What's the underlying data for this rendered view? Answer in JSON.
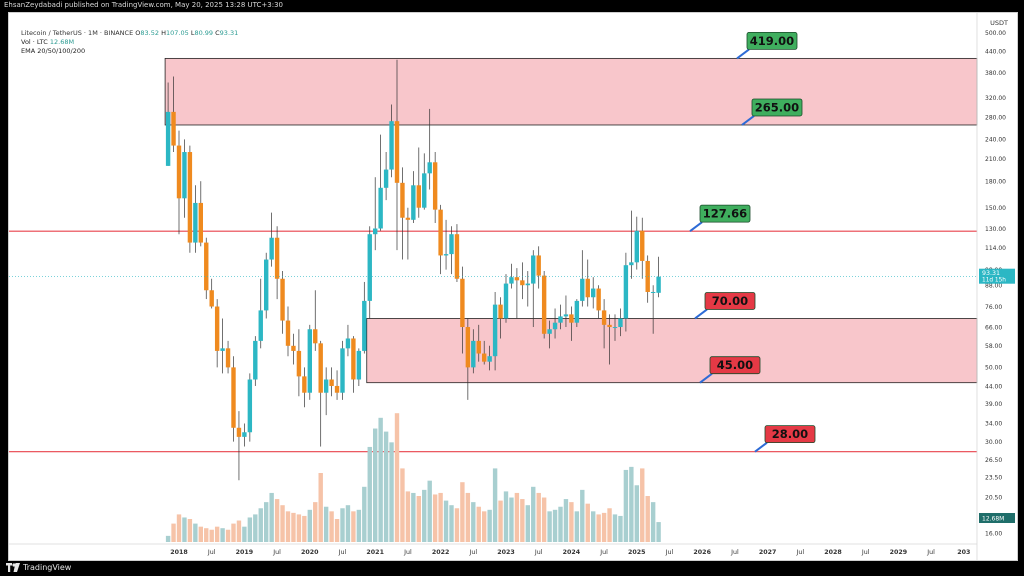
{
  "header": {
    "publisher_line": "EhsanZeydabadi published on TradingView.com, May 20, 2025 13:28 UTC+3:30",
    "symbol_line": "Litecoin / TetherUS · 1M · BINANCE",
    "ohlc": {
      "o_label": "O",
      "o": "83.52",
      "h_label": "H",
      "h": "107.05",
      "l_label": "L",
      "l": "80.99",
      "c_label": "C",
      "c": "93.31"
    },
    "volume_line": "Vol · LTC",
    "volume_value": "12.68M",
    "ema_line": "EMA 20/50/100/200"
  },
  "footer": {
    "brand": "TradingView",
    "logo_icon": "tradingview-logo-icon"
  },
  "colors": {
    "up": "#2cb7c4",
    "down": "#ef8a1f",
    "zone_fill": "#f8c6cb",
    "line_red": "#e8424b",
    "label_green": "#3fae5e",
    "label_red": "#e53945"
  },
  "chart_data": {
    "type": "candlestick",
    "timeframe": "1M",
    "y_scale": "log",
    "ylim": [
      16,
      520
    ],
    "y_axis_unit": "USDT",
    "y_ticks": [
      "16.00",
      "18.00",
      "20.50",
      "23.50",
      "26.50",
      "30.00",
      "34.00",
      "39.00",
      "44.00",
      "50.00",
      "58.00",
      "66.00",
      "76.00",
      "88.00",
      "98.00",
      "114.00",
      "130.00",
      "150.00",
      "180.00",
      "210.00",
      "240.00",
      "280.00",
      "320.00",
      "380.00",
      "440.00",
      "500.00"
    ],
    "x_ticks": [
      {
        "label": "2018",
        "date": "2018-01"
      },
      {
        "label": "Jul",
        "date": "2018-07"
      },
      {
        "label": "2019",
        "date": "2019-01"
      },
      {
        "label": "Jul",
        "date": "2019-07"
      },
      {
        "label": "2020",
        "date": "2020-01"
      },
      {
        "label": "Jul",
        "date": "2020-07"
      },
      {
        "label": "2021",
        "date": "2021-01"
      },
      {
        "label": "Jul",
        "date": "2021-07"
      },
      {
        "label": "2022",
        "date": "2022-01"
      },
      {
        "label": "Jul",
        "date": "2022-07"
      },
      {
        "label": "2023",
        "date": "2023-01"
      },
      {
        "label": "Jul",
        "date": "2023-07"
      },
      {
        "label": "2024",
        "date": "2024-01"
      },
      {
        "label": "Jul",
        "date": "2024-07"
      },
      {
        "label": "2025",
        "date": "2025-01"
      },
      {
        "label": "Jul",
        "date": "2025-07"
      },
      {
        "label": "2026",
        "date": "2026-01"
      },
      {
        "label": "Jul",
        "date": "2026-07"
      },
      {
        "label": "2027",
        "date": "2027-01"
      },
      {
        "label": "Jul",
        "date": "2027-07"
      },
      {
        "label": "2028",
        "date": "2028-01"
      },
      {
        "label": "Jul",
        "date": "2028-07"
      },
      {
        "label": "2029",
        "date": "2029-01"
      },
      {
        "label": "Jul",
        "date": "2029-07"
      },
      {
        "label": "203",
        "date": "2030-01"
      }
    ],
    "current_price": "93.31",
    "countdown": "11d 15h",
    "volume_last_label": "12.68M",
    "zones": [
      {
        "top": 419,
        "bottom": 265
      },
      {
        "top": 70,
        "bottom": 45
      }
    ],
    "lines": [
      127.66,
      28.0
    ],
    "labels": [
      {
        "text": "419.00",
        "value": 419,
        "color": "green"
      },
      {
        "text": "265.00",
        "value": 265,
        "color": "green"
      },
      {
        "text": "127.66",
        "value": 127.66,
        "color": "green"
      },
      {
        "text": "70.00",
        "value": 70,
        "color": "red"
      },
      {
        "text": "45.00",
        "value": 45,
        "color": "red"
      },
      {
        "text": "28.00",
        "value": 28,
        "color": "red"
      }
    ],
    "candles": [
      {
        "date": "2017-11",
        "o": 200,
        "h": 355,
        "l": 200,
        "c": 290,
        "v": 0.4
      },
      {
        "date": "2017-12",
        "o": 290,
        "h": 370,
        "l": 220,
        "c": 230,
        "v": 1.2
      },
      {
        "date": "2018-01",
        "o": 230,
        "h": 255,
        "l": 125,
        "c": 160,
        "v": 1.8
      },
      {
        "date": "2018-02",
        "o": 160,
        "h": 240,
        "l": 140,
        "c": 220,
        "v": 1.6
      },
      {
        "date": "2018-03",
        "o": 220,
        "h": 230,
        "l": 110,
        "c": 118,
        "v": 1.5
      },
      {
        "date": "2018-04",
        "o": 118,
        "h": 175,
        "l": 110,
        "c": 155,
        "v": 1.2
      },
      {
        "date": "2018-05",
        "o": 155,
        "h": 180,
        "l": 115,
        "c": 118,
        "v": 1.0
      },
      {
        "date": "2018-06",
        "o": 118,
        "h": 122,
        "l": 80,
        "c": 85,
        "v": 0.9
      },
      {
        "date": "2018-07",
        "o": 85,
        "h": 92,
        "l": 75,
        "c": 76,
        "v": 0.8
      },
      {
        "date": "2018-08",
        "o": 76,
        "h": 80,
        "l": 50,
        "c": 56,
        "v": 1.0
      },
      {
        "date": "2018-09",
        "o": 56,
        "h": 70,
        "l": 48,
        "c": 57,
        "v": 0.9
      },
      {
        "date": "2018-10",
        "o": 57,
        "h": 60,
        "l": 48,
        "c": 50,
        "v": 0.8
      },
      {
        "date": "2018-11",
        "o": 50,
        "h": 54,
        "l": 30,
        "c": 33,
        "v": 1.2
      },
      {
        "date": "2018-12",
        "o": 33,
        "h": 37,
        "l": 23,
        "c": 31,
        "v": 1.4
      },
      {
        "date": "2019-01",
        "o": 31,
        "h": 34,
        "l": 29,
        "c": 32,
        "v": 1.0
      },
      {
        "date": "2019-02",
        "o": 32,
        "h": 48,
        "l": 30,
        "c": 46,
        "v": 1.6
      },
      {
        "date": "2019-03",
        "o": 46,
        "h": 62,
        "l": 44,
        "c": 60,
        "v": 1.8
      },
      {
        "date": "2019-04",
        "o": 60,
        "h": 92,
        "l": 57,
        "c": 74,
        "v": 2.2
      },
      {
        "date": "2019-05",
        "o": 74,
        "h": 110,
        "l": 70,
        "c": 105,
        "v": 2.6
      },
      {
        "date": "2019-06",
        "o": 105,
        "h": 145,
        "l": 100,
        "c": 122,
        "v": 3.2
      },
      {
        "date": "2019-07",
        "o": 122,
        "h": 132,
        "l": 80,
        "c": 92,
        "v": 2.8
      },
      {
        "date": "2019-08",
        "o": 92,
        "h": 97,
        "l": 63,
        "c": 69,
        "v": 2.4
      },
      {
        "date": "2019-09",
        "o": 69,
        "h": 76,
        "l": 54,
        "c": 58,
        "v": 2.0
      },
      {
        "date": "2019-10",
        "o": 58,
        "h": 63,
        "l": 51,
        "c": 56,
        "v": 1.9
      },
      {
        "date": "2019-11",
        "o": 56,
        "h": 65,
        "l": 41,
        "c": 47,
        "v": 1.8
      },
      {
        "date": "2019-12",
        "o": 47,
        "h": 50,
        "l": 38,
        "c": 42,
        "v": 1.7
      },
      {
        "date": "2020-01",
        "o": 42,
        "h": 67,
        "l": 40,
        "c": 65,
        "v": 2.1
      },
      {
        "date": "2020-02",
        "o": 65,
        "h": 85,
        "l": 56,
        "c": 59,
        "v": 2.6
      },
      {
        "date": "2020-03",
        "o": 59,
        "h": 60,
        "l": 29,
        "c": 42,
        "v": 4.5
      },
      {
        "date": "2020-04",
        "o": 42,
        "h": 50,
        "l": 36,
        "c": 46,
        "v": 2.3
      },
      {
        "date": "2020-05",
        "o": 46,
        "h": 50,
        "l": 41,
        "c": 44,
        "v": 2.0
      },
      {
        "date": "2020-06",
        "o": 44,
        "h": 49,
        "l": 40,
        "c": 42,
        "v": 1.5
      },
      {
        "date": "2020-07",
        "o": 42,
        "h": 60,
        "l": 40,
        "c": 57,
        "v": 2.2
      },
      {
        "date": "2020-08",
        "o": 57,
        "h": 67,
        "l": 54,
        "c": 61,
        "v": 2.4
      },
      {
        "date": "2020-09",
        "o": 61,
        "h": 62,
        "l": 42,
        "c": 46,
        "v": 2.0
      },
      {
        "date": "2020-10",
        "o": 46,
        "h": 57,
        "l": 44,
        "c": 56,
        "v": 2.1
      },
      {
        "date": "2020-11",
        "o": 56,
        "h": 90,
        "l": 55,
        "c": 79,
        "v": 3.6
      },
      {
        "date": "2020-12",
        "o": 79,
        "h": 132,
        "l": 70,
        "c": 125,
        "v": 6.2
      },
      {
        "date": "2021-01",
        "o": 125,
        "h": 185,
        "l": 112,
        "c": 130,
        "v": 7.4
      },
      {
        "date": "2021-02",
        "o": 130,
        "h": 248,
        "l": 128,
        "c": 172,
        "v": 8.1
      },
      {
        "date": "2021-03",
        "o": 172,
        "h": 220,
        "l": 158,
        "c": 195,
        "v": 7.2
      },
      {
        "date": "2021-04",
        "o": 195,
        "h": 305,
        "l": 185,
        "c": 272,
        "v": 6.5
      },
      {
        "date": "2021-05",
        "o": 272,
        "h": 415,
        "l": 112,
        "c": 178,
        "v": 8.4
      },
      {
        "date": "2021-06",
        "o": 178,
        "h": 198,
        "l": 105,
        "c": 140,
        "v": 4.8
      },
      {
        "date": "2021-07",
        "o": 140,
        "h": 150,
        "l": 105,
        "c": 138,
        "v": 3.3
      },
      {
        "date": "2021-08",
        "o": 138,
        "h": 193,
        "l": 135,
        "c": 175,
        "v": 3.2
      },
      {
        "date": "2021-09",
        "o": 175,
        "h": 227,
        "l": 140,
        "c": 150,
        "v": 3.0
      },
      {
        "date": "2021-10",
        "o": 150,
        "h": 218,
        "l": 148,
        "c": 190,
        "v": 3.4
      },
      {
        "date": "2021-11",
        "o": 190,
        "h": 296,
        "l": 170,
        "c": 205,
        "v": 4.0
      },
      {
        "date": "2021-12",
        "o": 205,
        "h": 220,
        "l": 135,
        "c": 148,
        "v": 3.1
      },
      {
        "date": "2022-01",
        "o": 148,
        "h": 153,
        "l": 95,
        "c": 108,
        "v": 3.2
      },
      {
        "date": "2022-02",
        "o": 108,
        "h": 138,
        "l": 98,
        "c": 109,
        "v": 2.7
      },
      {
        "date": "2022-03",
        "o": 109,
        "h": 132,
        "l": 95,
        "c": 125,
        "v": 2.4
      },
      {
        "date": "2022-04",
        "o": 125,
        "h": 134,
        "l": 90,
        "c": 92,
        "v": 2.2
      },
      {
        "date": "2022-05",
        "o": 92,
        "h": 100,
        "l": 55,
        "c": 66,
        "v": 3.9
      },
      {
        "date": "2022-06",
        "o": 66,
        "h": 70,
        "l": 40,
        "c": 50,
        "v": 3.2
      },
      {
        "date": "2022-07",
        "o": 50,
        "h": 65,
        "l": 48,
        "c": 60,
        "v": 2.6
      },
      {
        "date": "2022-08",
        "o": 60,
        "h": 67,
        "l": 52,
        "c": 55,
        "v": 2.3
      },
      {
        "date": "2022-09",
        "o": 55,
        "h": 60,
        "l": 51,
        "c": 52,
        "v": 2.0
      },
      {
        "date": "2022-10",
        "o": 52,
        "h": 58,
        "l": 49,
        "c": 54,
        "v": 2.1
      },
      {
        "date": "2022-11",
        "o": 54,
        "h": 84,
        "l": 49,
        "c": 77,
        "v": 4.8
      },
      {
        "date": "2022-12",
        "o": 77,
        "h": 81,
        "l": 61,
        "c": 70,
        "v": 2.7
      },
      {
        "date": "2023-01",
        "o": 70,
        "h": 95,
        "l": 68,
        "c": 89,
        "v": 3.3
      },
      {
        "date": "2023-02",
        "o": 89,
        "h": 102,
        "l": 86,
        "c": 93,
        "v": 2.9
      },
      {
        "date": "2023-03",
        "o": 93,
        "h": 99,
        "l": 70,
        "c": 91,
        "v": 3.2
      },
      {
        "date": "2023-04",
        "o": 91,
        "h": 103,
        "l": 80,
        "c": 88,
        "v": 2.8
      },
      {
        "date": "2023-05",
        "o": 88,
        "h": 97,
        "l": 76,
        "c": 89,
        "v": 2.4
      },
      {
        "date": "2023-06",
        "o": 89,
        "h": 112,
        "l": 66,
        "c": 108,
        "v": 3.6
      },
      {
        "date": "2023-07",
        "o": 108,
        "h": 115,
        "l": 86,
        "c": 94,
        "v": 3.2
      },
      {
        "date": "2023-08",
        "o": 94,
        "h": 97,
        "l": 61,
        "c": 63,
        "v": 2.9
      },
      {
        "date": "2023-09",
        "o": 63,
        "h": 69,
        "l": 57,
        "c": 65,
        "v": 2.0
      },
      {
        "date": "2023-10",
        "o": 65,
        "h": 75,
        "l": 61,
        "c": 68,
        "v": 2.1
      },
      {
        "date": "2023-11",
        "o": 68,
        "h": 77,
        "l": 65,
        "c": 71,
        "v": 2.3
      },
      {
        "date": "2023-12",
        "o": 71,
        "h": 82,
        "l": 66,
        "c": 72,
        "v": 2.8
      },
      {
        "date": "2024-01",
        "o": 72,
        "h": 76,
        "l": 60,
        "c": 68,
        "v": 2.6
      },
      {
        "date": "2024-02",
        "o": 68,
        "h": 80,
        "l": 66,
        "c": 79,
        "v": 2.0
      },
      {
        "date": "2024-03",
        "o": 79,
        "h": 112,
        "l": 76,
        "c": 92,
        "v": 3.4
      },
      {
        "date": "2024-04",
        "o": 92,
        "h": 105,
        "l": 76,
        "c": 81,
        "v": 2.5
      },
      {
        "date": "2024-05",
        "o": 81,
        "h": 93,
        "l": 75,
        "c": 86,
        "v": 2.0
      },
      {
        "date": "2024-06",
        "o": 86,
        "h": 88,
        "l": 70,
        "c": 74,
        "v": 1.8
      },
      {
        "date": "2024-07",
        "o": 74,
        "h": 80,
        "l": 57,
        "c": 67,
        "v": 1.9
      },
      {
        "date": "2024-08",
        "o": 67,
        "h": 72,
        "l": 51,
        "c": 66,
        "v": 2.2
      },
      {
        "date": "2024-09",
        "o": 66,
        "h": 72,
        "l": 60,
        "c": 66,
        "v": 1.8
      },
      {
        "date": "2024-10",
        "o": 66,
        "h": 75,
        "l": 62,
        "c": 70,
        "v": 1.7
      },
      {
        "date": "2024-11",
        "o": 70,
        "h": 110,
        "l": 64,
        "c": 101,
        "v": 4.7
      },
      {
        "date": "2024-12",
        "o": 101,
        "h": 147,
        "l": 92,
        "c": 103,
        "v": 4.9
      },
      {
        "date": "2025-01",
        "o": 103,
        "h": 141,
        "l": 98,
        "c": 128,
        "v": 3.7
      },
      {
        "date": "2025-02",
        "o": 128,
        "h": 140,
        "l": 92,
        "c": 104,
        "v": 4.8
      },
      {
        "date": "2025-03",
        "o": 104,
        "h": 108,
        "l": 78,
        "c": 84,
        "v": 3.0
      },
      {
        "date": "2025-04",
        "o": 84,
        "h": 88,
        "l": 63,
        "c": 84,
        "v": 2.6
      },
      {
        "date": "2025-05",
        "o": 83.52,
        "h": 107.05,
        "l": 80.99,
        "c": 93.31,
        "v": 1.3
      }
    ]
  }
}
